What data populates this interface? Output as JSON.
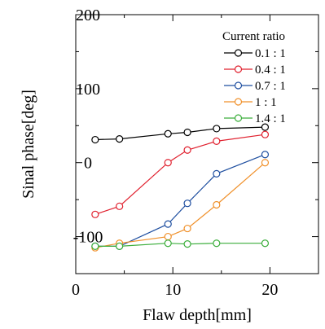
{
  "chart_data": {
    "type": "line",
    "xlabel": "Flaw depth[mm]",
    "ylabel": "Sinal phase[deg]",
    "xlim": [
      0,
      25
    ],
    "ylim": [
      -150,
      200
    ],
    "x_ticks": [
      0,
      10,
      20
    ],
    "y_ticks": [
      -100,
      0,
      100,
      200
    ],
    "x_tick_labels": [
      "0",
      "10",
      "20"
    ],
    "y_tick_labels": [
      "-100",
      "0",
      "100",
      "200"
    ],
    "grid": false,
    "legend_title": "Current ratio",
    "legend_position": "top-right",
    "x": [
      2,
      4.5,
      9.5,
      11.5,
      14.5,
      19.5
    ],
    "series": [
      {
        "name": "0.1 : 1",
        "color": "#000000",
        "values": [
          31,
          32,
          39,
          41,
          46,
          48
        ]
      },
      {
        "name": "0.4 : 1",
        "color": "#e0202e",
        "values": [
          -70,
          -59,
          0,
          17,
          29,
          38
        ]
      },
      {
        "name": "0.7 : 1",
        "color": "#1f4fa0",
        "values": [
          -113,
          -113,
          -83,
          -55,
          -15,
          11
        ]
      },
      {
        "name": "1 : 1",
        "color": "#f0902a",
        "values": [
          -115,
          -109,
          -100,
          -89,
          -57,
          0
        ]
      },
      {
        "name": "1.4 : 1",
        "color": "#3cae3c",
        "values": [
          -113,
          -113,
          -109,
          -110,
          -109,
          -109
        ]
      }
    ]
  }
}
